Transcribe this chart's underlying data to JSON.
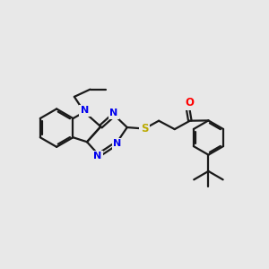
{
  "bg_color": "#e8e8e8",
  "line_color": "#1a1a1a",
  "N_color": "#0000ee",
  "S_color": "#bbaa00",
  "O_color": "#ff0000",
  "line_width": 1.6,
  "figsize": [
    3.0,
    3.0
  ],
  "dpi": 100,
  "xlim": [
    0,
    10
  ],
  "ylim": [
    0,
    10
  ]
}
